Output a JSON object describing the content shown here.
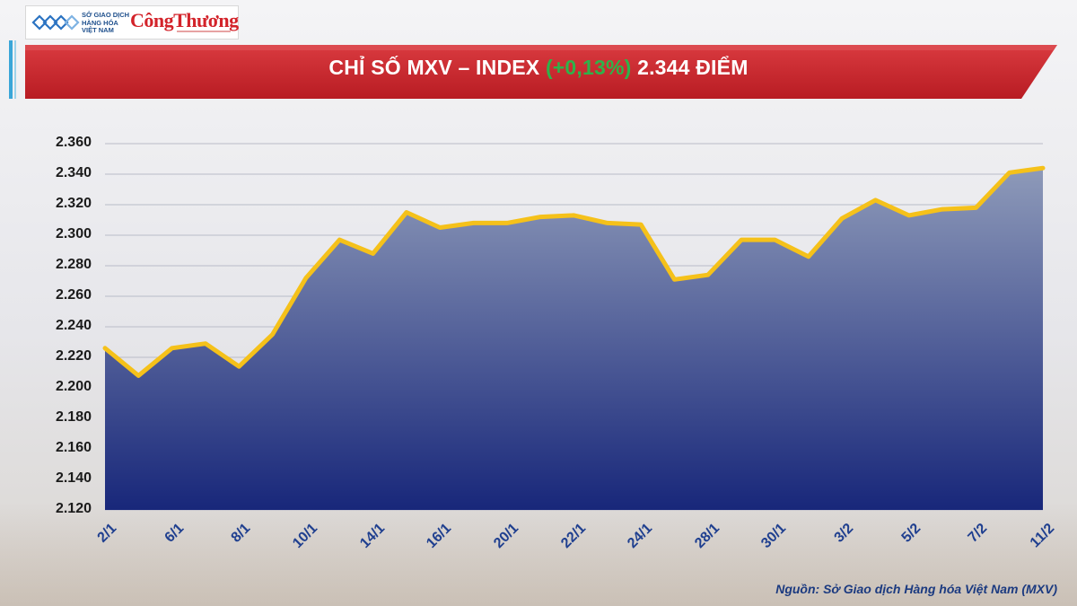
{
  "header": {
    "mxv_logo_lines": [
      "SỞ GIAO DỊCH",
      "HÀNG HÓA",
      "VIỆT NAM"
    ],
    "publisher_logo": "CôngThương",
    "title_prefix": "CHỈ SỐ MXV – INDEX ",
    "title_change": "(+0,13%)",
    "title_suffix": " 2.344 ĐIỂM",
    "colors": {
      "banner": "#c8232a",
      "change": "#2fb24a",
      "accent_bar": "#3aa6d8"
    }
  },
  "chart_data": {
    "type": "area",
    "title": "CHỈ SỐ MXV – INDEX (+0,13%) 2.344 ĐIỂM",
    "xlabel": "",
    "ylabel": "",
    "ylim": [
      2120,
      2360
    ],
    "yticks": [
      "2.360",
      "2.340",
      "2.320",
      "2.300",
      "2.280",
      "2.260",
      "2.240",
      "2.220",
      "2.200",
      "2.180",
      "2.160",
      "2.140",
      "2.120"
    ],
    "xtick_labels": [
      "2/1",
      "6/1",
      "8/1",
      "10/1",
      "14/1",
      "16/1",
      "20/1",
      "22/1",
      "24/1",
      "28/1",
      "30/1",
      "3/2",
      "5/2",
      "7/2",
      "11/2"
    ],
    "values": [
      2226,
      2208,
      2226,
      2229,
      2214,
      2235,
      2272,
      2297,
      2288,
      2315,
      2305,
      2308,
      2308,
      2312,
      2313,
      2308,
      2307,
      2271,
      2274,
      2297,
      2297,
      2286,
      2311,
      2323,
      2313,
      2317,
      2318,
      2341,
      2344
    ],
    "grid": true,
    "line_color": "#f5c11a",
    "fill_top": "#8e9ab9",
    "fill_bottom": "#18277a",
    "source": "Nguồn: Sở Giao dịch Hàng hóa Việt Nam (MXV)"
  }
}
